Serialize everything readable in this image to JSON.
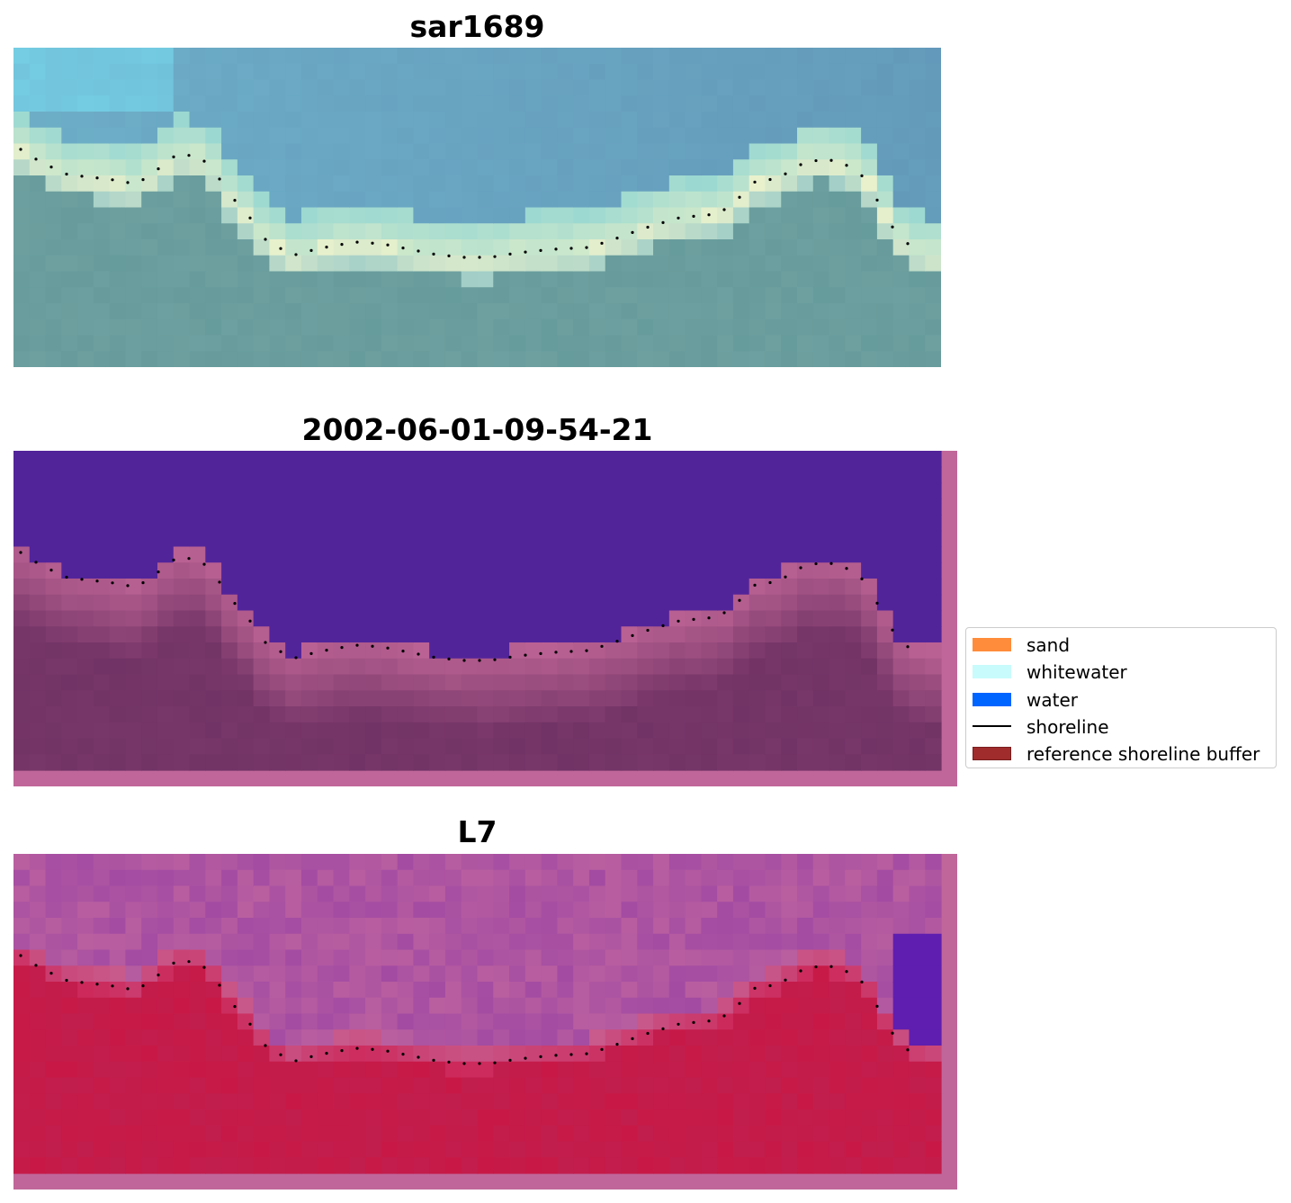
{
  "panels": [
    {
      "title": "sar1689",
      "scheme": "rgb"
    },
    {
      "title": "2002-06-01-09-54-21",
      "scheme": "classified"
    },
    {
      "title": "L7",
      "scheme": "index"
    }
  ],
  "legend": {
    "items": [
      {
        "label": "sand",
        "color": "#ff8c3a",
        "kind": "patch"
      },
      {
        "label": "whitewater",
        "color": "#c8fbfb",
        "kind": "patch"
      },
      {
        "label": "water",
        "color": "#0064ff",
        "kind": "patch"
      },
      {
        "label": "shoreline",
        "color": "#000000",
        "kind": "line"
      },
      {
        "label": "reference shoreline buffer",
        "color": "#a02c2c",
        "kind": "patch"
      }
    ]
  },
  "colors": {
    "buffer_overlay": "#c0669a",
    "deep_water_class": "#52249a",
    "shoreline_dots": "#000000"
  }
}
